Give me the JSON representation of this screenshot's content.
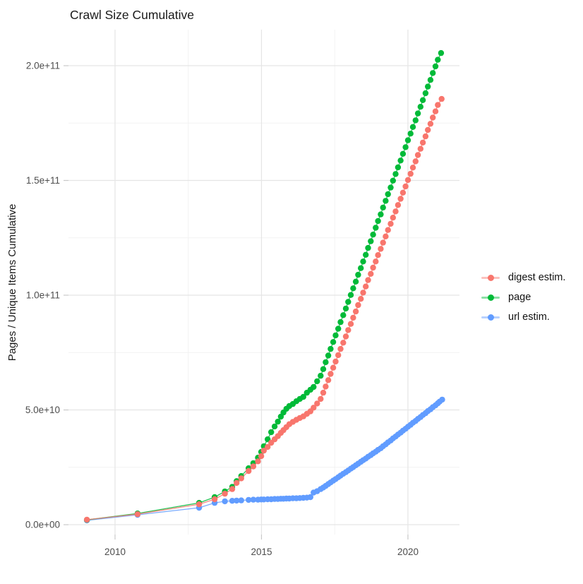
{
  "title": "Crawl Size Cumulative",
  "y_axis": {
    "title": "Pages / Unique Items Cumulative",
    "tick_labels": [
      "0.0e+00",
      "5.0e+10",
      "1.0e+11",
      "1.5e+11",
      "2.0e+11"
    ]
  },
  "x_axis": {
    "tick_labels": [
      "2010",
      "2015",
      "2020"
    ]
  },
  "legend": {
    "items": [
      {
        "label": "digest estim.",
        "color": "#F8766D"
      },
      {
        "label": "page",
        "color": "#00BA38"
      },
      {
        "label": "url estim.",
        "color": "#619CFF"
      }
    ]
  },
  "chart_data": {
    "type": "line",
    "title": "Crawl Size Cumulative",
    "xlabel": "",
    "ylabel": "Pages / Unique Items Cumulative",
    "legend_position": "right",
    "grid": true,
    "value_unit": "billions of items (1e9); y tick labels shown in scientific notation",
    "xlim": [
      2008.41,
      2021.76
    ],
    "ylim_e9": [
      -4.3,
      215.7
    ],
    "x_ticks": [
      2010,
      2015,
      2020
    ],
    "x_minor_ticks": [
      2012.5,
      2017.5
    ],
    "y_ticks_e9": [
      0,
      50,
      100,
      150,
      200
    ],
    "y_minor_ticks_e9": [
      25,
      75,
      125,
      175
    ],
    "series": [
      {
        "name": "url estim.",
        "color": "#619CFF",
        "points_year_e9": [
          [
            2009.04,
            1.9
          ],
          [
            2010.77,
            4.3
          ],
          [
            2012.87,
            7.4
          ],
          [
            2013.4,
            9.5
          ],
          [
            2013.75,
            10.2
          ],
          [
            2014.0,
            10.4
          ],
          [
            2014.15,
            10.5
          ],
          [
            2014.31,
            10.6
          ],
          [
            2014.56,
            10.8
          ],
          [
            2014.72,
            10.9
          ],
          [
            2014.88,
            10.9
          ],
          [
            2014.99,
            11.0
          ],
          [
            2015.08,
            11.0
          ],
          [
            2015.21,
            11.1
          ],
          [
            2015.33,
            11.1
          ],
          [
            2015.45,
            11.2
          ],
          [
            2015.56,
            11.2
          ],
          [
            2015.66,
            11.3
          ],
          [
            2015.75,
            11.3
          ],
          [
            2015.85,
            11.4
          ],
          [
            2015.95,
            11.4
          ],
          [
            2016.07,
            11.5
          ],
          [
            2016.19,
            11.5
          ],
          [
            2016.31,
            11.6
          ],
          [
            2016.43,
            11.7
          ],
          [
            2016.55,
            11.8
          ],
          [
            2016.67,
            12.0
          ],
          [
            2016.78,
            14.0
          ],
          [
            2016.9,
            14.6
          ],
          [
            2017.02,
            15.5
          ],
          [
            2017.11,
            16.2
          ],
          [
            2017.19,
            16.9
          ],
          [
            2017.28,
            17.7
          ],
          [
            2017.36,
            18.4
          ],
          [
            2017.45,
            19.2
          ],
          [
            2017.53,
            19.9
          ],
          [
            2017.62,
            20.7
          ],
          [
            2017.7,
            21.4
          ],
          [
            2017.79,
            22.2
          ],
          [
            2017.88,
            22.9
          ],
          [
            2017.96,
            23.6
          ],
          [
            2018.05,
            24.4
          ],
          [
            2018.13,
            25.1
          ],
          [
            2018.22,
            25.9
          ],
          [
            2018.3,
            26.6
          ],
          [
            2018.39,
            27.4
          ],
          [
            2018.47,
            28.1
          ],
          [
            2018.56,
            28.8
          ],
          [
            2018.64,
            29.6
          ],
          [
            2018.73,
            30.3
          ],
          [
            2018.81,
            31.1
          ],
          [
            2018.9,
            31.8
          ],
          [
            2018.98,
            32.6
          ],
          [
            2019.07,
            33.3
          ],
          [
            2019.15,
            34.2
          ],
          [
            2019.24,
            35.0
          ],
          [
            2019.32,
            35.9
          ],
          [
            2019.41,
            36.7
          ],
          [
            2019.49,
            37.6
          ],
          [
            2019.58,
            38.4
          ],
          [
            2019.66,
            39.3
          ],
          [
            2019.75,
            40.1
          ],
          [
            2019.83,
            41.0
          ],
          [
            2019.92,
            41.8
          ],
          [
            2020.0,
            42.7
          ],
          [
            2020.09,
            43.5
          ],
          [
            2020.17,
            44.4
          ],
          [
            2020.26,
            45.2
          ],
          [
            2020.34,
            46.1
          ],
          [
            2020.43,
            46.9
          ],
          [
            2020.51,
            47.8
          ],
          [
            2020.6,
            48.6
          ],
          [
            2020.68,
            49.5
          ],
          [
            2020.77,
            50.3
          ],
          [
            2020.85,
            51.2
          ],
          [
            2020.94,
            52.0
          ],
          [
            2021.02,
            52.9
          ],
          [
            2021.08,
            53.6
          ],
          [
            2021.17,
            54.5
          ]
        ]
      },
      {
        "name": "page",
        "color": "#00BA38",
        "points_year_e9": [
          [
            2009.04,
            2.1
          ],
          [
            2010.77,
            4.9
          ],
          [
            2012.87,
            9.5
          ],
          [
            2013.4,
            12.0
          ],
          [
            2013.75,
            14.5
          ],
          [
            2014.0,
            16.5
          ],
          [
            2014.15,
            19.0
          ],
          [
            2014.31,
            21.2
          ],
          [
            2014.56,
            24.6
          ],
          [
            2014.72,
            26.8
          ],
          [
            2014.88,
            29.2
          ],
          [
            2014.99,
            31.7
          ],
          [
            2015.08,
            34.2
          ],
          [
            2015.21,
            37.2
          ],
          [
            2015.33,
            40.3
          ],
          [
            2015.45,
            42.8
          ],
          [
            2015.56,
            44.9
          ],
          [
            2015.66,
            47.1
          ],
          [
            2015.75,
            48.9
          ],
          [
            2015.85,
            50.5
          ],
          [
            2015.95,
            51.7
          ],
          [
            2016.07,
            52.6
          ],
          [
            2016.19,
            53.8
          ],
          [
            2016.31,
            54.8
          ],
          [
            2016.43,
            55.7
          ],
          [
            2016.55,
            57.5
          ],
          [
            2016.67,
            58.8
          ],
          [
            2016.78,
            60.0
          ],
          [
            2016.9,
            62.5
          ],
          [
            2017.02,
            64.9
          ],
          [
            2017.11,
            67.8
          ],
          [
            2017.19,
            70.8
          ],
          [
            2017.28,
            73.7
          ],
          [
            2017.36,
            76.6
          ],
          [
            2017.45,
            79.6
          ],
          [
            2017.53,
            82.5
          ],
          [
            2017.62,
            85.4
          ],
          [
            2017.7,
            88.3
          ],
          [
            2017.79,
            91.3
          ],
          [
            2017.88,
            94.2
          ],
          [
            2017.96,
            97.1
          ],
          [
            2018.05,
            100.1
          ],
          [
            2018.13,
            103.0
          ],
          [
            2018.22,
            105.9
          ],
          [
            2018.3,
            108.9
          ],
          [
            2018.39,
            111.8
          ],
          [
            2018.47,
            114.7
          ],
          [
            2018.56,
            117.6
          ],
          [
            2018.64,
            120.6
          ],
          [
            2018.73,
            123.5
          ],
          [
            2018.81,
            126.4
          ],
          [
            2018.9,
            129.4
          ],
          [
            2018.98,
            132.3
          ],
          [
            2019.07,
            135.2
          ],
          [
            2019.15,
            138.2
          ],
          [
            2019.24,
            141.1
          ],
          [
            2019.32,
            144.0
          ],
          [
            2019.41,
            146.9
          ],
          [
            2019.49,
            149.9
          ],
          [
            2019.58,
            152.8
          ],
          [
            2019.66,
            155.7
          ],
          [
            2019.75,
            158.7
          ],
          [
            2019.83,
            161.6
          ],
          [
            2019.92,
            164.5
          ],
          [
            2020.0,
            167.5
          ],
          [
            2020.09,
            170.4
          ],
          [
            2020.17,
            173.3
          ],
          [
            2020.26,
            176.2
          ],
          [
            2020.34,
            179.2
          ],
          [
            2020.43,
            182.1
          ],
          [
            2020.51,
            185.0
          ],
          [
            2020.6,
            188.0
          ],
          [
            2020.68,
            190.9
          ],
          [
            2020.77,
            193.8
          ],
          [
            2020.85,
            196.8
          ],
          [
            2020.94,
            199.7
          ],
          [
            2021.02,
            202.6
          ],
          [
            2021.13,
            205.5
          ]
        ]
      },
      {
        "name": "digest estim.",
        "color": "#F8766D",
        "points_year_e9": [
          [
            2009.04,
            2.2
          ],
          [
            2010.77,
            4.6
          ],
          [
            2012.87,
            8.9
          ],
          [
            2013.4,
            11.1
          ],
          [
            2013.75,
            13.5
          ],
          [
            2014.0,
            15.5
          ],
          [
            2014.15,
            18.2
          ],
          [
            2014.31,
            20.2
          ],
          [
            2014.56,
            23.4
          ],
          [
            2014.72,
            25.4
          ],
          [
            2014.88,
            27.6
          ],
          [
            2014.99,
            29.9
          ],
          [
            2015.08,
            32.3
          ],
          [
            2015.21,
            33.9
          ],
          [
            2015.33,
            35.7
          ],
          [
            2015.45,
            37.2
          ],
          [
            2015.56,
            38.6
          ],
          [
            2015.66,
            40.0
          ],
          [
            2015.75,
            41.2
          ],
          [
            2015.85,
            42.5
          ],
          [
            2015.95,
            43.8
          ],
          [
            2016.07,
            44.8
          ],
          [
            2016.19,
            45.7
          ],
          [
            2016.31,
            46.5
          ],
          [
            2016.43,
            47.2
          ],
          [
            2016.55,
            48.3
          ],
          [
            2016.67,
            49.4
          ],
          [
            2016.78,
            51.0
          ],
          [
            2016.9,
            52.8
          ],
          [
            2017.02,
            54.8
          ],
          [
            2017.11,
            57.5
          ],
          [
            2017.19,
            60.2
          ],
          [
            2017.28,
            63.0
          ],
          [
            2017.36,
            65.7
          ],
          [
            2017.45,
            68.4
          ],
          [
            2017.53,
            71.1
          ],
          [
            2017.62,
            73.9
          ],
          [
            2017.7,
            76.6
          ],
          [
            2017.79,
            79.3
          ],
          [
            2017.88,
            82.0
          ],
          [
            2017.96,
            84.8
          ],
          [
            2018.05,
            87.5
          ],
          [
            2018.13,
            90.2
          ],
          [
            2018.22,
            92.9
          ],
          [
            2018.3,
            95.7
          ],
          [
            2018.39,
            98.4
          ],
          [
            2018.47,
            101.1
          ],
          [
            2018.56,
            103.8
          ],
          [
            2018.64,
            106.6
          ],
          [
            2018.73,
            109.3
          ],
          [
            2018.81,
            112.0
          ],
          [
            2018.9,
            114.7
          ],
          [
            2018.98,
            117.5
          ],
          [
            2019.07,
            120.2
          ],
          [
            2019.15,
            122.9
          ],
          [
            2019.24,
            125.6
          ],
          [
            2019.32,
            128.4
          ],
          [
            2019.41,
            131.1
          ],
          [
            2019.49,
            133.8
          ],
          [
            2019.58,
            136.5
          ],
          [
            2019.66,
            139.3
          ],
          [
            2019.75,
            142.0
          ],
          [
            2019.83,
            144.7
          ],
          [
            2019.92,
            147.4
          ],
          [
            2020.0,
            150.2
          ],
          [
            2020.09,
            152.9
          ],
          [
            2020.17,
            155.6
          ],
          [
            2020.26,
            158.3
          ],
          [
            2020.34,
            161.1
          ],
          [
            2020.43,
            163.8
          ],
          [
            2020.51,
            166.5
          ],
          [
            2020.6,
            169.2
          ],
          [
            2020.68,
            172.0
          ],
          [
            2020.77,
            174.7
          ],
          [
            2020.85,
            177.4
          ],
          [
            2020.94,
            180.1
          ],
          [
            2021.02,
            182.9
          ],
          [
            2021.15,
            185.5
          ]
        ]
      }
    ]
  }
}
